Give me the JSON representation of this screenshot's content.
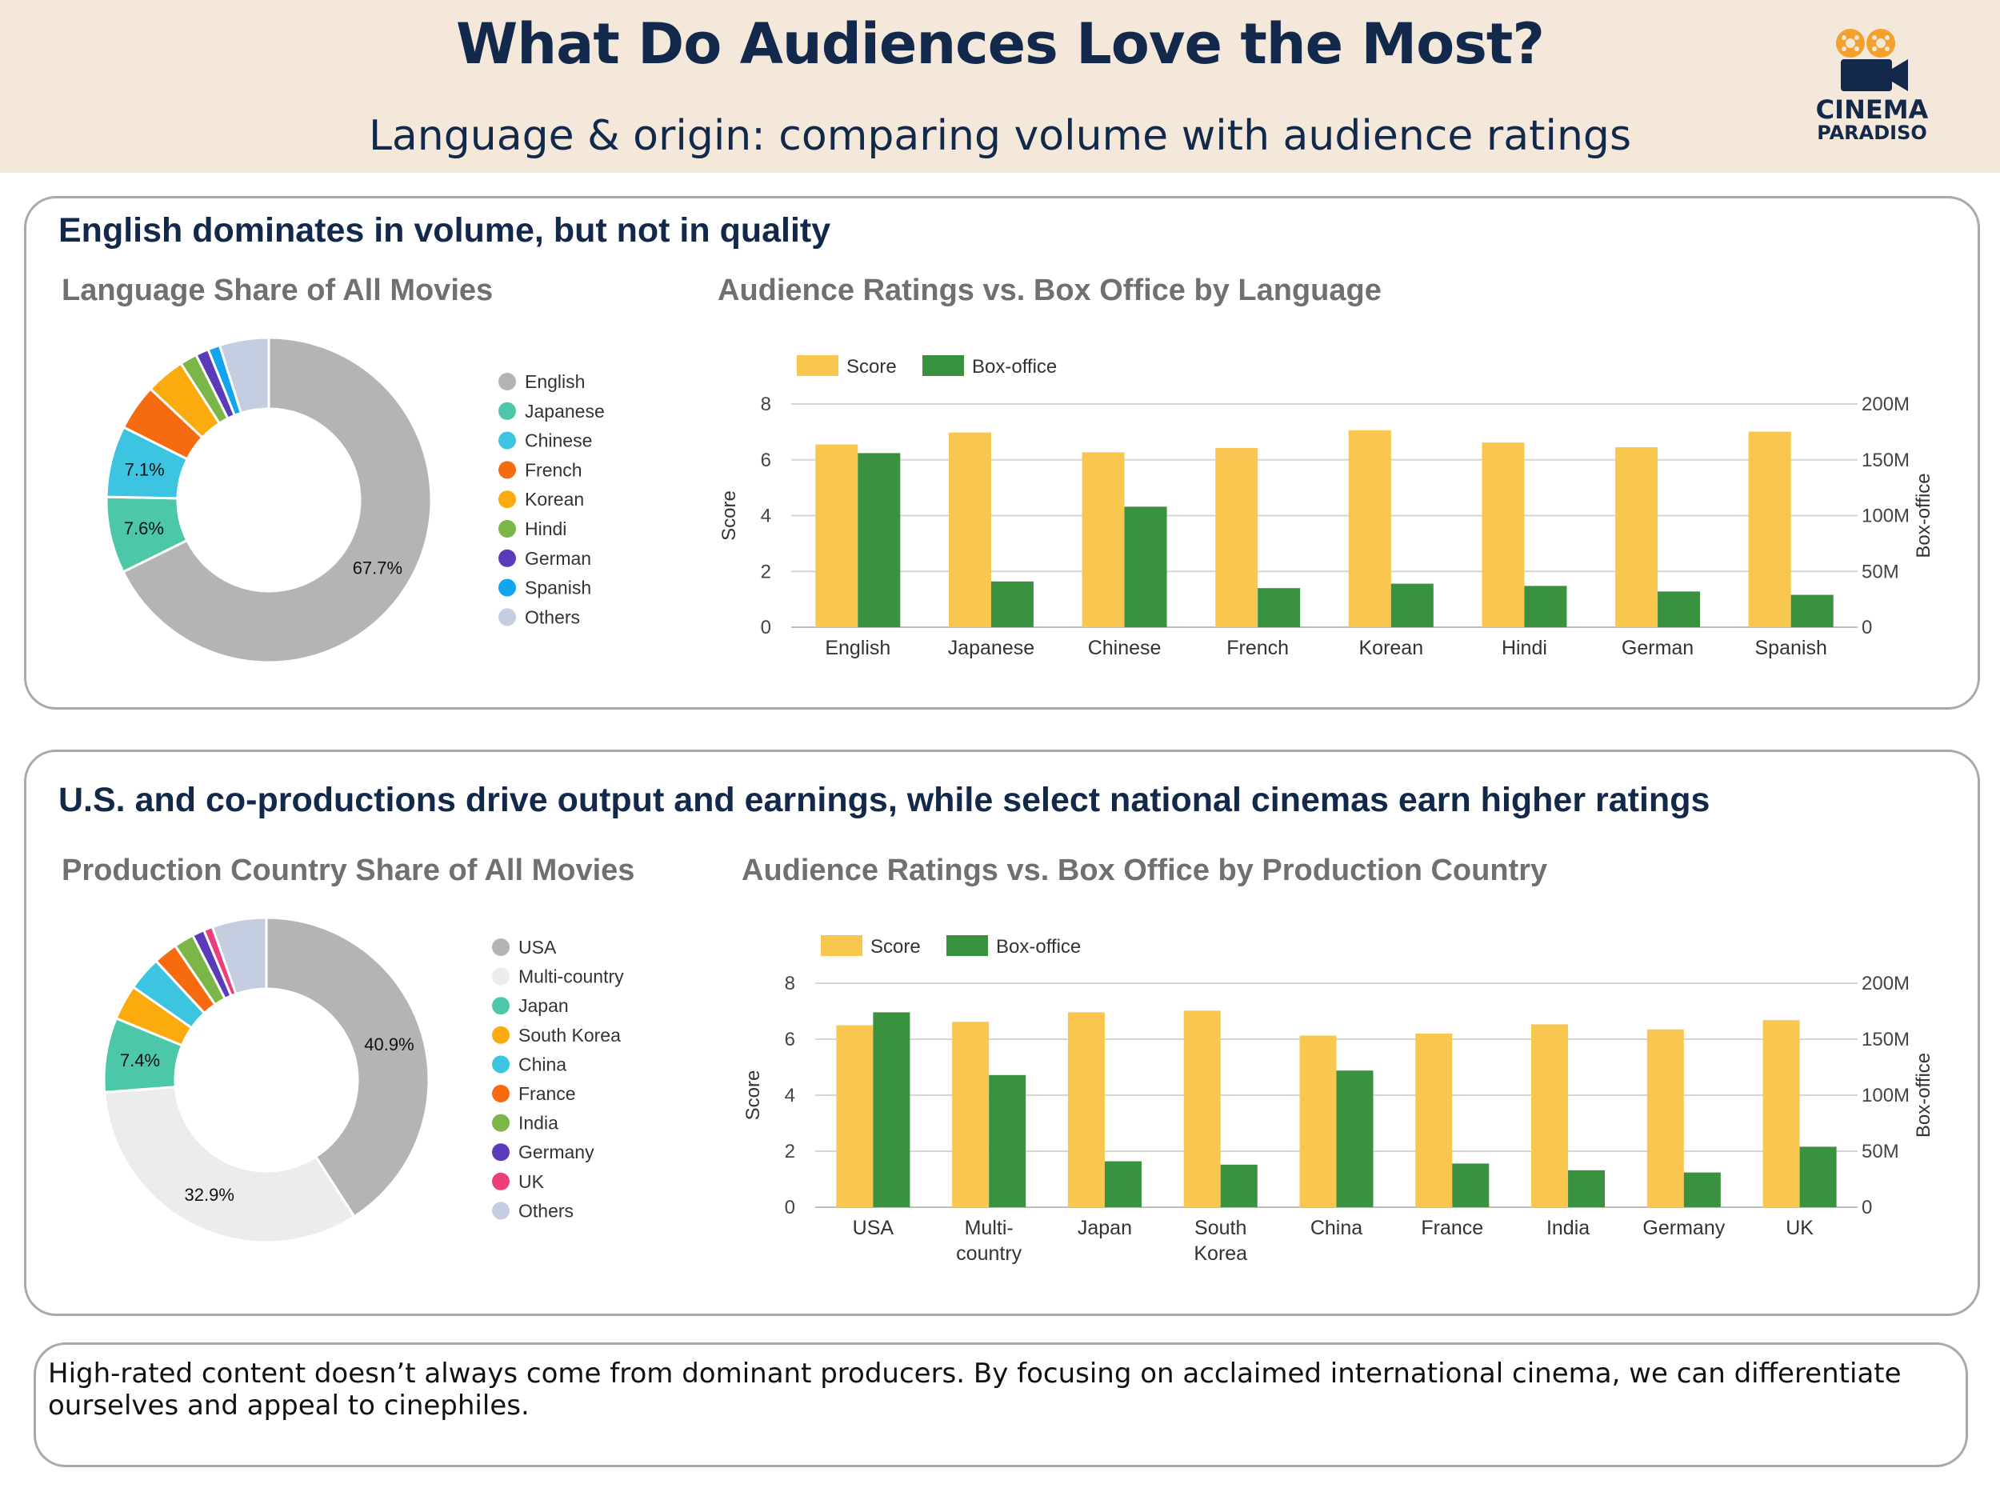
{
  "header": {
    "title": "What Do Audiences Love the Most?",
    "subtitle": "Language & origin: comparing volume with audience ratings",
    "logo_line1": "CINEMA",
    "logo_line2": "PARADISO"
  },
  "colors": {
    "header_bg": "#f3e8d9",
    "navy": "#13294b",
    "score": "#f9c74f",
    "boxoffice": "#3a9140",
    "logo_reel": "#f4a02f"
  },
  "panel1": {
    "heading": "English dominates in volume, but not in quality",
    "pie_title": "Language Share of All Movies",
    "bar_title": "Audience Ratings vs. Box Office by Language"
  },
  "panel2": {
    "heading": "U.S. and co-productions drive output and earnings, while select national cinemas earn higher ratings",
    "pie_title": "Production Country Share of All Movies",
    "bar_title": "Audience Ratings vs. Box Office by Production Country"
  },
  "footer": {
    "text": "High-rated content doesn’t always come from dominant producers. By focusing on acclaimed international cinema, we can differentiate ourselves and appeal to cinephiles."
  },
  "chart_data": [
    {
      "id": "lang-pie",
      "type": "pie",
      "donut": true,
      "title": "Language Share of All Movies",
      "legend_position": "right",
      "slices": [
        {
          "label": "English",
          "value": 67.7,
          "color": "#b4b4b4",
          "data_label": "67.7%"
        },
        {
          "label": "Japanese",
          "value": 7.6,
          "color": "#4cc8a8",
          "data_label": "7.6%"
        },
        {
          "label": "Chinese",
          "value": 7.1,
          "color": "#3cc4e0",
          "data_label": "7.1%"
        },
        {
          "label": "French",
          "value": 4.6,
          "color": "#f76b10",
          "data_label": ""
        },
        {
          "label": "Korean",
          "value": 3.9,
          "color": "#fbab0d",
          "data_label": ""
        },
        {
          "label": "Hindi",
          "value": 1.7,
          "color": "#7ab648",
          "data_label": ""
        },
        {
          "label": "German",
          "value": 1.3,
          "color": "#5a3cb8",
          "data_label": ""
        },
        {
          "label": "Spanish",
          "value": 1.2,
          "color": "#12a5ef",
          "data_label": ""
        },
        {
          "label": "Others",
          "value": 4.9,
          "color": "#c5cde0",
          "data_label": ""
        }
      ]
    },
    {
      "id": "lang-bar",
      "type": "bar",
      "title": "Audience Ratings vs. Box Office by Language",
      "categories": [
        "English",
        "Japanese",
        "Chinese",
        "French",
        "Korean",
        "Hindi",
        "German",
        "Spanish"
      ],
      "series": [
        {
          "name": "Score",
          "axis": "left",
          "color": "#f9c74f",
          "values": [
            6.55,
            6.98,
            6.27,
            6.42,
            7.06,
            6.62,
            6.45,
            7.01
          ]
        },
        {
          "name": "Box-office",
          "axis": "right",
          "color": "#3a9140",
          "values": [
            156000000,
            41000000,
            108000000,
            35000000,
            39000000,
            37000000,
            32000000,
            29000000
          ]
        }
      ],
      "ylabel": "Score",
      "ylabel_right": "Box-office",
      "ylim": [
        0,
        8
      ],
      "y_ticks": [
        "0",
        "2",
        "4",
        "6",
        "8"
      ],
      "ylim_right": [
        0,
        200000000
      ],
      "y_ticks_right": [
        "0",
        "50M",
        "100M",
        "150M",
        "200M"
      ],
      "legend_position": "top-left",
      "grid": true
    },
    {
      "id": "country-pie",
      "type": "pie",
      "donut": true,
      "title": "Production Country Share of All Movies",
      "legend_position": "right",
      "slices": [
        {
          "label": "USA",
          "value": 40.9,
          "color": "#b4b4b4",
          "data_label": "40.9%"
        },
        {
          "label": "Multi-country",
          "value": 32.9,
          "color": "#ececec",
          "data_label": "32.9%"
        },
        {
          "label": "Japan",
          "value": 7.4,
          "color": "#4cc8a8",
          "data_label": "7.4%"
        },
        {
          "label": "South Korea",
          "value": 3.5,
          "color": "#fbab0d",
          "data_label": ""
        },
        {
          "label": "China",
          "value": 3.4,
          "color": "#3cc4e0",
          "data_label": ""
        },
        {
          "label": "France",
          "value": 2.4,
          "color": "#f76b10",
          "data_label": ""
        },
        {
          "label": "India",
          "value": 2.0,
          "color": "#7ab648",
          "data_label": ""
        },
        {
          "label": "Germany",
          "value": 1.2,
          "color": "#5a3cb8",
          "data_label": ""
        },
        {
          "label": "UK",
          "value": 0.9,
          "color": "#ea3f7a",
          "data_label": ""
        },
        {
          "label": "Others",
          "value": 5.4,
          "color": "#c5cde0",
          "data_label": ""
        }
      ]
    },
    {
      "id": "country-bar",
      "type": "bar",
      "title": "Audience Ratings vs. Box Office by Production Country",
      "categories": [
        "USA",
        "Multi-country",
        "Japan",
        "South Korea",
        "China",
        "France",
        "India",
        "Germany",
        "UK"
      ],
      "category_lines": [
        [
          "USA"
        ],
        [
          "Multi-",
          "country"
        ],
        [
          "Japan"
        ],
        [
          "South",
          "Korea"
        ],
        [
          "China"
        ],
        [
          "France"
        ],
        [
          "India"
        ],
        [
          "Germany"
        ],
        [
          "UK"
        ]
      ],
      "series": [
        {
          "name": "Score",
          "axis": "left",
          "color": "#f9c74f",
          "values": [
            6.5,
            6.62,
            6.96,
            7.02,
            6.13,
            6.2,
            6.53,
            6.35,
            6.68
          ]
        },
        {
          "name": "Box-office",
          "axis": "right",
          "color": "#3a9140",
          "values": [
            174000000,
            118000000,
            41000000,
            38000000,
            122000000,
            39000000,
            33000000,
            31000000,
            54000000
          ]
        }
      ],
      "ylabel": "Score",
      "ylabel_right": "Box-office",
      "ylim": [
        0,
        8
      ],
      "y_ticks": [
        "0",
        "2",
        "4",
        "6",
        "8"
      ],
      "ylim_right": [
        0,
        200000000
      ],
      "y_ticks_right": [
        "0",
        "50M",
        "100M",
        "150M",
        "200M"
      ],
      "legend_position": "top-left",
      "grid": true
    }
  ]
}
